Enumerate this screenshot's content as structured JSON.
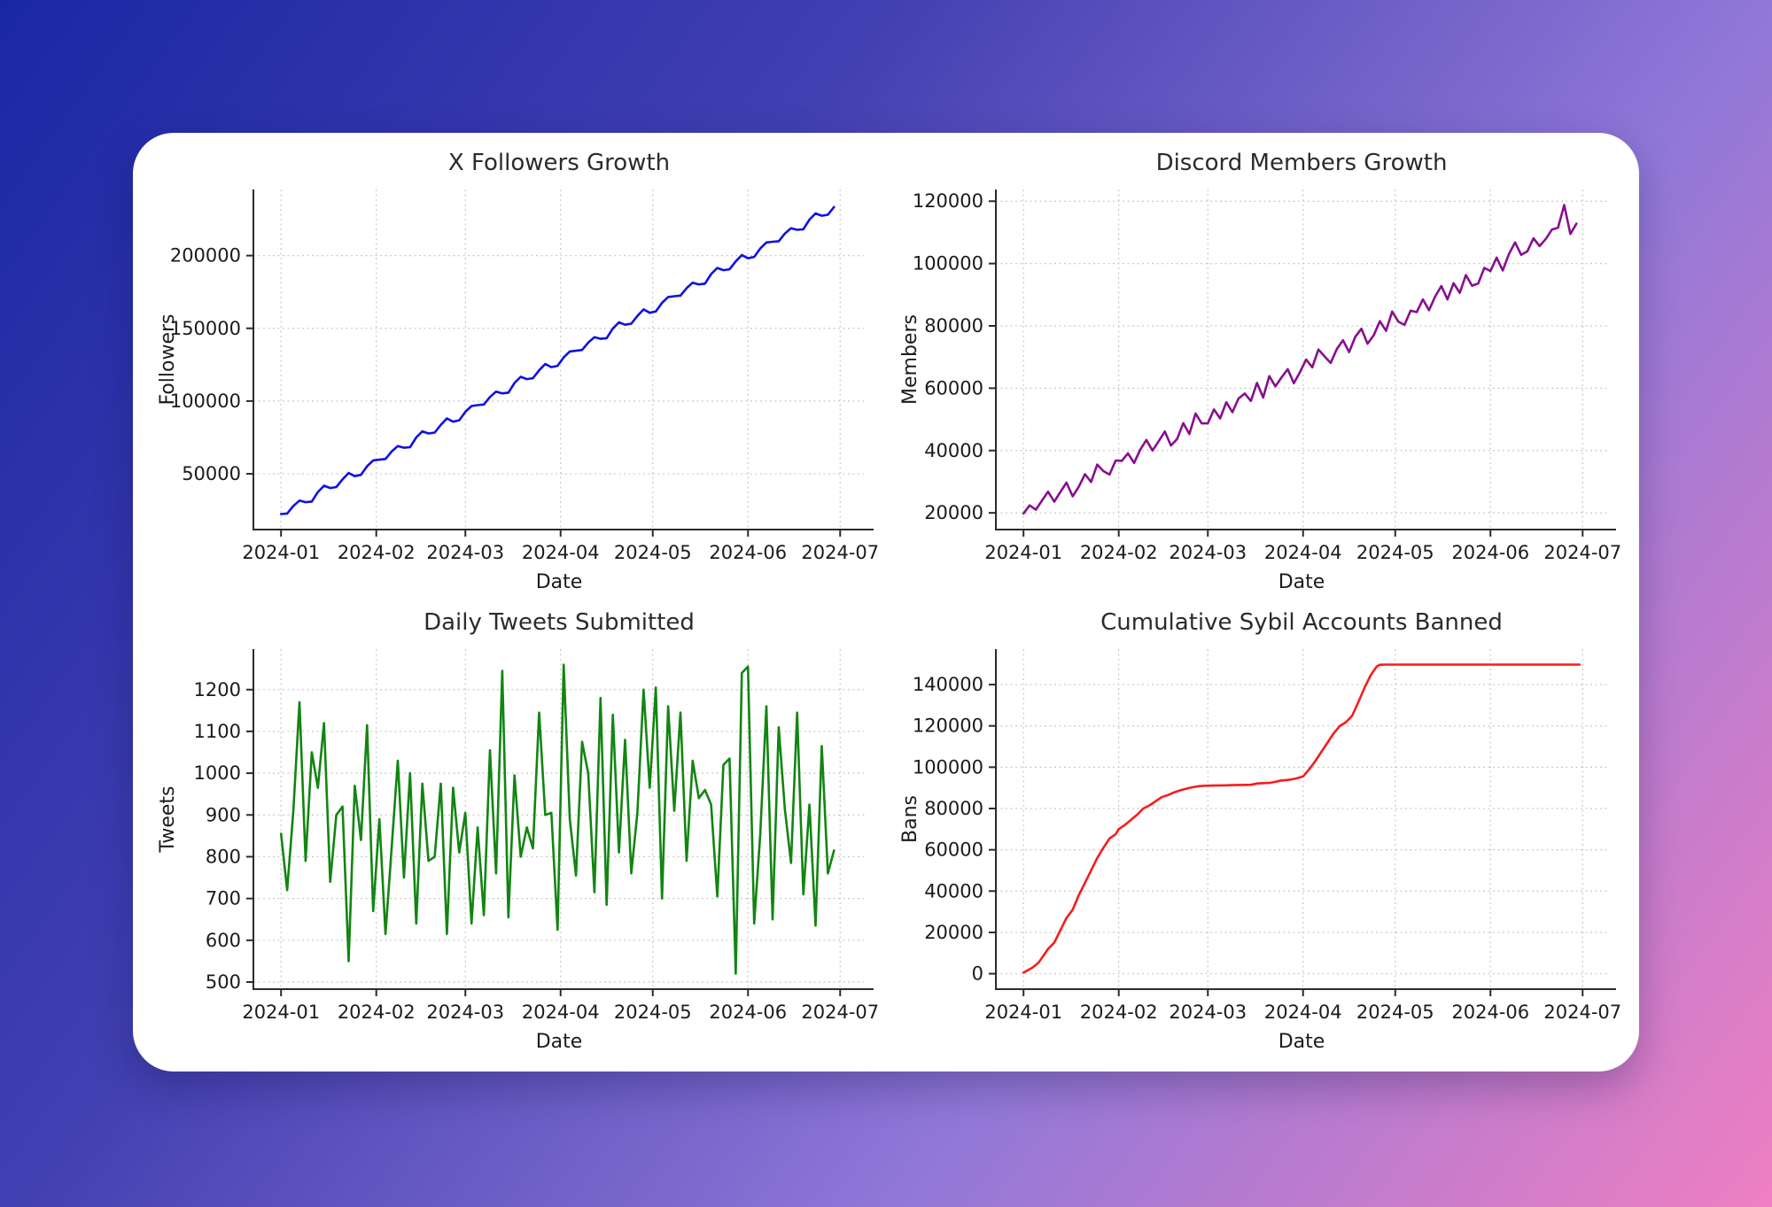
{
  "page": {
    "background_gradient": [
      "#1a27a4",
      "#4340b2",
      "#9178d8",
      "#ef7fc2"
    ],
    "card_color": "#ffffff"
  },
  "chart_data": [
    {
      "type": "line",
      "title": "X Followers Growth",
      "xlabel": "Date",
      "ylabel": "Followers",
      "color": "#1010e6",
      "grid": true,
      "legend": "none",
      "x_unit": "days since 2024-01-01",
      "xlim": [
        -9,
        190
      ],
      "ylim": [
        11675,
        245425
      ],
      "yticks": [
        50000,
        100000,
        150000,
        200000
      ],
      "xticks": {
        "days": [
          0,
          31,
          60,
          91,
          121,
          152,
          182
        ],
        "labels": [
          "2024-01",
          "2024-02",
          "2024-03",
          "2024-04",
          "2024-05",
          "2024-06",
          "2024-07"
        ]
      },
      "x": [
        0,
        2,
        4,
        6,
        8,
        10,
        12,
        14,
        16,
        18,
        20,
        22,
        24,
        26,
        28,
        30,
        32,
        34,
        36,
        38,
        40,
        42,
        44,
        46,
        48,
        50,
        52,
        54,
        56,
        58,
        60,
        62,
        64,
        66,
        68,
        70,
        72,
        74,
        76,
        78,
        80,
        82,
        84,
        86,
        88,
        90,
        92,
        94,
        96,
        98,
        100,
        102,
        104,
        106,
        108,
        110,
        112,
        114,
        116,
        118,
        120,
        122,
        124,
        126,
        128,
        130,
        132,
        134,
        136,
        138,
        140,
        142,
        144,
        146,
        148,
        150,
        152,
        154,
        156,
        158,
        160,
        162,
        164,
        166,
        168,
        170,
        172,
        174,
        176,
        178,
        180
      ],
      "values": [
        22300,
        22700,
        27900,
        31600,
        30500,
        30900,
        37500,
        41800,
        40200,
        40900,
        46200,
        50600,
        48400,
        49300,
        55200,
        59200,
        59700,
        60200,
        65300,
        69100,
        67900,
        68300,
        75000,
        79200,
        77700,
        78300,
        83600,
        88100,
        85800,
        86800,
        92600,
        96600,
        97200,
        97600,
        102800,
        106500,
        105300,
        105800,
        112400,
        116700,
        115100,
        115700,
        121100,
        125500,
        123300,
        124200,
        130000,
        134100,
        134600,
        135100,
        140200,
        143900,
        142800,
        143200,
        149900,
        154100,
        152500,
        153200,
        158500,
        163000,
        160700,
        161600,
        167500,
        171500,
        172100,
        172500,
        177600,
        181400,
        180200,
        180700,
        187300,
        191500,
        190000,
        190600,
        196000,
        200400,
        198100,
        199100,
        204900,
        209000,
        209500,
        209900,
        215100,
        218800,
        217700,
        218100,
        224700,
        229000,
        227400,
        228100,
        233400
      ]
    },
    {
      "type": "line",
      "title": "Discord Members Growth",
      "xlabel": "Date",
      "ylabel": "Members",
      "color": "#870f8f",
      "grid": true,
      "legend": "none",
      "x_unit": "days since 2024-01-01",
      "xlim": [
        -9,
        190
      ],
      "ylim": [
        14640,
        123760
      ],
      "yticks": [
        20000,
        40000,
        60000,
        80000,
        100000,
        120000
      ],
      "xticks": {
        "days": [
          0,
          31,
          60,
          91,
          121,
          152,
          182
        ],
        "labels": [
          "2024-01",
          "2024-02",
          "2024-03",
          "2024-04",
          "2024-05",
          "2024-06",
          "2024-07"
        ]
      },
      "x": [
        0,
        2,
        4,
        6,
        8,
        10,
        12,
        14,
        16,
        18,
        20,
        22,
        24,
        26,
        28,
        30,
        32,
        34,
        36,
        38,
        40,
        42,
        44,
        46,
        48,
        50,
        52,
        54,
        56,
        58,
        60,
        62,
        64,
        66,
        68,
        70,
        72,
        74,
        76,
        78,
        80,
        82,
        84,
        86,
        88,
        90,
        92,
        94,
        96,
        98,
        100,
        102,
        104,
        106,
        108,
        110,
        112,
        114,
        116,
        118,
        120,
        122,
        124,
        126,
        128,
        130,
        132,
        134,
        136,
        138,
        140,
        142,
        144,
        146,
        148,
        150,
        152,
        154,
        156,
        158,
        160,
        162,
        164,
        166,
        168,
        170,
        172,
        174,
        176,
        178,
        180
      ],
      "values": [
        19800,
        22400,
        21000,
        23900,
        26800,
        23600,
        26700,
        29700,
        25300,
        28400,
        32400,
        29900,
        35500,
        33400,
        32300,
        36800,
        36700,
        39100,
        36000,
        40300,
        43400,
        40000,
        43000,
        46100,
        41600,
        43700,
        48800,
        45300,
        51900,
        48700,
        48700,
        53200,
        50300,
        55500,
        52300,
        56700,
        58300,
        55900,
        61700,
        57000,
        63900,
        60600,
        63500,
        66100,
        61600,
        65200,
        69200,
        66700,
        72400,
        70200,
        68100,
        72600,
        75400,
        71600,
        76500,
        79100,
        74300,
        77000,
        81500,
        78400,
        84600,
        81400,
        80300,
        84900,
        84400,
        88500,
        85000,
        89400,
        92800,
        88500,
        93700,
        90600,
        96300,
        92900,
        93600,
        98600,
        97600,
        101900,
        97800,
        103000,
        106800,
        102800,
        103900,
        108100,
        105600,
        107900,
        110900,
        111500,
        118800,
        109500,
        112800
      ]
    },
    {
      "type": "line",
      "title": "Daily Tweets Submitted",
      "xlabel": "Date",
      "ylabel": "Tweets",
      "color": "#128512",
      "grid": true,
      "legend": "none",
      "x_unit": "days since 2024-01-01",
      "xlim": [
        -9,
        190
      ],
      "ylim": [
        483,
        1297
      ],
      "yticks": [
        500,
        600,
        700,
        800,
        900,
        1000,
        1100,
        1200
      ],
      "xticks": {
        "days": [
          0,
          31,
          60,
          91,
          121,
          152,
          182
        ],
        "labels": [
          "2024-01",
          "2024-02",
          "2024-03",
          "2024-04",
          "2024-05",
          "2024-06",
          "2024-07"
        ]
      },
      "x": [
        0,
        2,
        4,
        6,
        8,
        10,
        12,
        14,
        16,
        18,
        20,
        22,
        24,
        26,
        28,
        30,
        32,
        34,
        36,
        38,
        40,
        42,
        44,
        46,
        48,
        50,
        52,
        54,
        56,
        58,
        60,
        62,
        64,
        66,
        68,
        70,
        72,
        74,
        76,
        78,
        80,
        82,
        84,
        86,
        88,
        90,
        92,
        94,
        96,
        98,
        100,
        102,
        104,
        106,
        108,
        110,
        112,
        114,
        116,
        118,
        120,
        122,
        124,
        126,
        128,
        130,
        132,
        134,
        136,
        138,
        140,
        142,
        144,
        146,
        148,
        150,
        152,
        154,
        156,
        158,
        160,
        162,
        164,
        166,
        168,
        170,
        172,
        174,
        176,
        178,
        180
      ],
      "values": [
        855,
        720,
        910,
        1170,
        790,
        1050,
        965,
        1120,
        740,
        900,
        920,
        550,
        970,
        840,
        1115,
        670,
        890,
        615,
        820,
        1030,
        750,
        1000,
        640,
        975,
        790,
        800,
        975,
        615,
        965,
        810,
        905,
        640,
        870,
        660,
        1055,
        760,
        1245,
        655,
        995,
        800,
        870,
        820,
        1145,
        900,
        905,
        625,
        1260,
        890,
        755,
        1075,
        1000,
        715,
        1180,
        685,
        1140,
        810,
        1080,
        760,
        905,
        1200,
        965,
        1205,
        700,
        1160,
        910,
        1145,
        790,
        1030,
        940,
        960,
        925,
        705,
        1020,
        1035,
        520,
        1240,
        1255,
        640,
        855,
        1160,
        650,
        1110,
        915,
        785,
        1145,
        710,
        925,
        635,
        1065,
        760,
        815
      ]
    },
    {
      "type": "line",
      "title": "Cumulative Sybil Accounts Banned",
      "xlabel": "Date",
      "ylabel": "Bans",
      "color": "#f71b1b",
      "grid": true,
      "legend": "none",
      "x_unit": "days since 2024-01-01",
      "xlim": [
        -9,
        190
      ],
      "ylim": [
        -7485,
        157185
      ],
      "yticks": [
        0,
        20000,
        40000,
        60000,
        80000,
        100000,
        120000,
        140000
      ],
      "xticks": {
        "days": [
          0,
          31,
          60,
          91,
          121,
          152,
          182
        ],
        "labels": [
          "2024-01",
          "2024-02",
          "2024-03",
          "2024-04",
          "2024-05",
          "2024-06",
          "2024-07"
        ]
      },
      "x": [
        0,
        3,
        5,
        8,
        10,
        12,
        14,
        16,
        18,
        20,
        22,
        24,
        26,
        28,
        30,
        31,
        33,
        35,
        37,
        39,
        41,
        43,
        45,
        47,
        49,
        51,
        53,
        55,
        57,
        59,
        62,
        65,
        68,
        71,
        74,
        76,
        78,
        80,
        82,
        84,
        86,
        88,
        89,
        91,
        93,
        95,
        97,
        99,
        101,
        103,
        105,
        107,
        109,
        111,
        113,
        115,
        116,
        118,
        121,
        130,
        140,
        150,
        160,
        170,
        181
      ],
      "values": [
        500,
        3000,
        5500,
        12000,
        15000,
        21000,
        27000,
        31000,
        38000,
        44000,
        50000,
        56000,
        61000,
        65500,
        67500,
        70000,
        72000,
        74500,
        77000,
        80000,
        81500,
        83500,
        85500,
        86500,
        87800,
        88800,
        89600,
        90300,
        90800,
        91000,
        91100,
        91200,
        91300,
        91400,
        91500,
        92100,
        92300,
        92400,
        92900,
        93600,
        93800,
        94300,
        94600,
        95500,
        99000,
        103000,
        107500,
        112000,
        116500,
        120000,
        121800,
        125000,
        131500,
        138500,
        144500,
        148800,
        149600,
        149700,
        149700,
        149700,
        149700,
        149700,
        149700,
        149700,
        149700
      ]
    }
  ]
}
